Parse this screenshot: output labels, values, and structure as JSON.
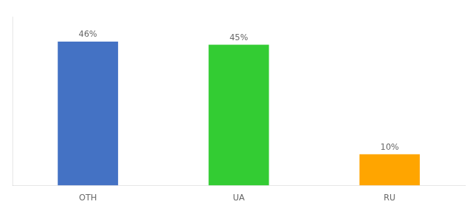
{
  "chart_data": {
    "type": "bar",
    "categories": [
      "OTH",
      "UA",
      "RU"
    ],
    "values": [
      46,
      45,
      10
    ],
    "value_labels": [
      "46%",
      "45%",
      "10%"
    ],
    "colors": [
      "#4472C4",
      "#33CC33",
      "#FFA500"
    ],
    "ylim": [
      0,
      54
    ],
    "grid": false,
    "data_labels": true,
    "tick_labels": "x"
  }
}
